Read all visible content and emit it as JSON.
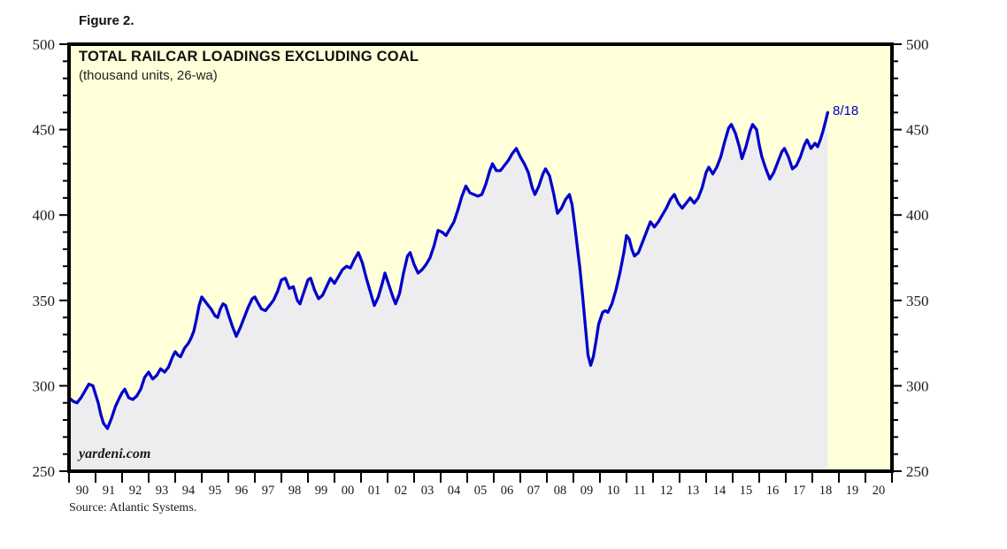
{
  "figure_label": "Figure 2.",
  "watermark": "yardeni.com",
  "source": "Source: Atlantic Systems.",
  "chart_data": {
    "type": "area",
    "title": "TOTAL RAILCAR LOADINGS EXCLUDING COAL",
    "subtitle": "(thousand units, 26-wa)",
    "end_label": "8/18",
    "xlabel": "",
    "ylabel": "thousand units",
    "xlim": [
      1990,
      2021
    ],
    "ylim": [
      250,
      500
    ],
    "y_ticks": [
      250,
      300,
      350,
      400,
      450,
      500
    ],
    "y_minor_step": 10,
    "x_tick_labels": [
      "90",
      "91",
      "92",
      "93",
      "94",
      "95",
      "96",
      "97",
      "98",
      "99",
      "00",
      "01",
      "02",
      "03",
      "04",
      "05",
      "06",
      "07",
      "08",
      "09",
      "10",
      "11",
      "12",
      "13",
      "14",
      "15",
      "16",
      "17",
      "18",
      "19",
      "20"
    ],
    "grid": false,
    "legend": "none",
    "colors": {
      "line": "#0000cc",
      "fill": "#ededef",
      "plot_bg": "#ffffd9",
      "frame": "#000000",
      "text": "#1a1a1a"
    },
    "series": [
      {
        "name": "Total railcar loadings excluding coal (26-week average)",
        "last_point_label": "8/18",
        "points": [
          [
            1990.0,
            293
          ],
          [
            1990.15,
            291
          ],
          [
            1990.3,
            290
          ],
          [
            1990.45,
            293
          ],
          [
            1990.6,
            297
          ],
          [
            1990.75,
            301
          ],
          [
            1990.9,
            300
          ],
          [
            1991.0,
            295
          ],
          [
            1991.1,
            290
          ],
          [
            1991.2,
            283
          ],
          [
            1991.3,
            278
          ],
          [
            1991.45,
            275
          ],
          [
            1991.6,
            281
          ],
          [
            1991.75,
            288
          ],
          [
            1991.9,
            293
          ],
          [
            1992.0,
            296
          ],
          [
            1992.1,
            298
          ],
          [
            1992.25,
            293
          ],
          [
            1992.4,
            292
          ],
          [
            1992.55,
            294
          ],
          [
            1992.7,
            298
          ],
          [
            1992.85,
            305
          ],
          [
            1993.0,
            308
          ],
          [
            1993.15,
            304
          ],
          [
            1993.3,
            306
          ],
          [
            1993.45,
            310
          ],
          [
            1993.6,
            308
          ],
          [
            1993.75,
            311
          ],
          [
            1993.9,
            317
          ],
          [
            1994.0,
            320
          ],
          [
            1994.1,
            318
          ],
          [
            1994.2,
            317
          ],
          [
            1994.35,
            322
          ],
          [
            1994.5,
            325
          ],
          [
            1994.6,
            328
          ],
          [
            1994.7,
            332
          ],
          [
            1994.8,
            339
          ],
          [
            1994.9,
            347
          ],
          [
            1995.0,
            352
          ],
          [
            1995.1,
            350
          ],
          [
            1995.2,
            348
          ],
          [
            1995.35,
            345
          ],
          [
            1995.5,
            341
          ],
          [
            1995.6,
            340
          ],
          [
            1995.7,
            345
          ],
          [
            1995.8,
            348
          ],
          [
            1995.9,
            347
          ],
          [
            1996.0,
            342
          ],
          [
            1996.15,
            335
          ],
          [
            1996.3,
            329
          ],
          [
            1996.45,
            334
          ],
          [
            1996.6,
            340
          ],
          [
            1996.75,
            346
          ],
          [
            1996.9,
            351
          ],
          [
            1997.0,
            352
          ],
          [
            1997.1,
            349
          ],
          [
            1997.25,
            345
          ],
          [
            1997.4,
            344
          ],
          [
            1997.55,
            347
          ],
          [
            1997.7,
            350
          ],
          [
            1997.85,
            355
          ],
          [
            1998.0,
            362
          ],
          [
            1998.15,
            363
          ],
          [
            1998.3,
            357
          ],
          [
            1998.45,
            358
          ],
          [
            1998.6,
            350
          ],
          [
            1998.7,
            348
          ],
          [
            1998.85,
            355
          ],
          [
            1999.0,
            362
          ],
          [
            1999.1,
            363
          ],
          [
            1999.25,
            356
          ],
          [
            1999.4,
            351
          ],
          [
            1999.55,
            353
          ],
          [
            1999.7,
            358
          ],
          [
            1999.85,
            363
          ],
          [
            2000.0,
            360
          ],
          [
            2000.15,
            364
          ],
          [
            2000.3,
            368
          ],
          [
            2000.45,
            370
          ],
          [
            2000.6,
            369
          ],
          [
            2000.75,
            374
          ],
          [
            2000.9,
            378
          ],
          [
            2001.05,
            372
          ],
          [
            2001.2,
            363
          ],
          [
            2001.35,
            355
          ],
          [
            2001.5,
            347
          ],
          [
            2001.65,
            352
          ],
          [
            2001.8,
            360
          ],
          [
            2001.9,
            366
          ],
          [
            2002.05,
            359
          ],
          [
            2002.2,
            352
          ],
          [
            2002.3,
            348
          ],
          [
            2002.45,
            354
          ],
          [
            2002.6,
            366
          ],
          [
            2002.75,
            376
          ],
          [
            2002.85,
            378
          ],
          [
            2003.0,
            371
          ],
          [
            2003.15,
            366
          ],
          [
            2003.3,
            368
          ],
          [
            2003.45,
            371
          ],
          [
            2003.6,
            375
          ],
          [
            2003.75,
            382
          ],
          [
            2003.9,
            391
          ],
          [
            2004.05,
            390
          ],
          [
            2004.2,
            388
          ],
          [
            2004.35,
            392
          ],
          [
            2004.5,
            396
          ],
          [
            2004.65,
            403
          ],
          [
            2004.8,
            411
          ],
          [
            2004.95,
            417
          ],
          [
            2005.1,
            413
          ],
          [
            2005.25,
            412
          ],
          [
            2005.4,
            411
          ],
          [
            2005.55,
            412
          ],
          [
            2005.7,
            418
          ],
          [
            2005.85,
            426
          ],
          [
            2005.95,
            430
          ],
          [
            2006.1,
            426
          ],
          [
            2006.25,
            426
          ],
          [
            2006.4,
            429
          ],
          [
            2006.55,
            432
          ],
          [
            2006.7,
            436
          ],
          [
            2006.85,
            439
          ],
          [
            2007.0,
            434
          ],
          [
            2007.15,
            430
          ],
          [
            2007.3,
            425
          ],
          [
            2007.45,
            416
          ],
          [
            2007.55,
            412
          ],
          [
            2007.7,
            417
          ],
          [
            2007.85,
            424
          ],
          [
            2007.95,
            427
          ],
          [
            2008.1,
            423
          ],
          [
            2008.25,
            413
          ],
          [
            2008.4,
            401
          ],
          [
            2008.55,
            404
          ],
          [
            2008.7,
            409
          ],
          [
            2008.85,
            412
          ],
          [
            2008.95,
            406
          ],
          [
            2009.05,
            394
          ],
          [
            2009.15,
            381
          ],
          [
            2009.25,
            368
          ],
          [
            2009.35,
            352
          ],
          [
            2009.45,
            335
          ],
          [
            2009.55,
            318
          ],
          [
            2009.65,
            312
          ],
          [
            2009.75,
            317
          ],
          [
            2009.85,
            326
          ],
          [
            2009.95,
            336
          ],
          [
            2010.1,
            343
          ],
          [
            2010.2,
            344
          ],
          [
            2010.3,
            343
          ],
          [
            2010.45,
            348
          ],
          [
            2010.6,
            356
          ],
          [
            2010.75,
            366
          ],
          [
            2010.9,
            378
          ],
          [
            2011.0,
            388
          ],
          [
            2011.1,
            386
          ],
          [
            2011.2,
            380
          ],
          [
            2011.3,
            376
          ],
          [
            2011.45,
            378
          ],
          [
            2011.6,
            384
          ],
          [
            2011.75,
            390
          ],
          [
            2011.9,
            396
          ],
          [
            2012.05,
            393
          ],
          [
            2012.2,
            396
          ],
          [
            2012.35,
            400
          ],
          [
            2012.5,
            404
          ],
          [
            2012.65,
            409
          ],
          [
            2012.8,
            412
          ],
          [
            2012.95,
            407
          ],
          [
            2013.1,
            404
          ],
          [
            2013.25,
            407
          ],
          [
            2013.4,
            410
          ],
          [
            2013.55,
            407
          ],
          [
            2013.7,
            410
          ],
          [
            2013.85,
            416
          ],
          [
            2014.0,
            425
          ],
          [
            2014.1,
            428
          ],
          [
            2014.25,
            424
          ],
          [
            2014.4,
            428
          ],
          [
            2014.55,
            434
          ],
          [
            2014.7,
            443
          ],
          [
            2014.85,
            451
          ],
          [
            2014.95,
            453
          ],
          [
            2015.1,
            448
          ],
          [
            2015.25,
            440
          ],
          [
            2015.35,
            433
          ],
          [
            2015.5,
            440
          ],
          [
            2015.65,
            449
          ],
          [
            2015.75,
            453
          ],
          [
            2015.9,
            450
          ],
          [
            2016.0,
            441
          ],
          [
            2016.1,
            434
          ],
          [
            2016.25,
            427
          ],
          [
            2016.4,
            421
          ],
          [
            2016.55,
            425
          ],
          [
            2016.7,
            431
          ],
          [
            2016.85,
            437
          ],
          [
            2016.95,
            439
          ],
          [
            2017.1,
            434
          ],
          [
            2017.25,
            427
          ],
          [
            2017.4,
            429
          ],
          [
            2017.55,
            434
          ],
          [
            2017.7,
            441
          ],
          [
            2017.8,
            444
          ],
          [
            2017.95,
            439
          ],
          [
            2018.1,
            442
          ],
          [
            2018.2,
            440
          ],
          [
            2018.3,
            444
          ],
          [
            2018.4,
            449
          ],
          [
            2018.5,
            455
          ],
          [
            2018.58,
            460
          ]
        ]
      }
    ]
  }
}
